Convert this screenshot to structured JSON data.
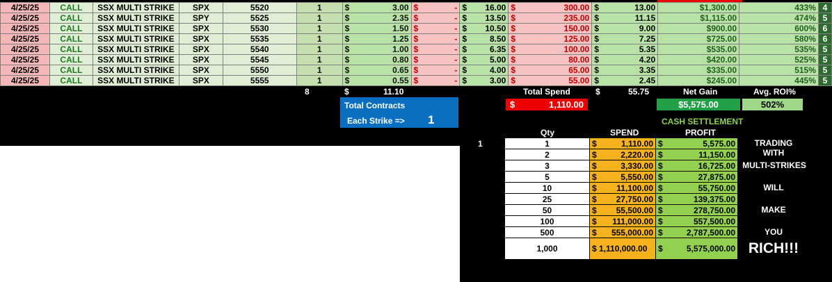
{
  "trades": [
    {
      "date": "4/25/25",
      "type": "CALL",
      "strategy": "SSX MULTI STRIKE",
      "symbol": "SPX",
      "strike": "5520",
      "qty": "1",
      "buy_cur": "$",
      "buy": "3.00",
      "sell_cur": "$",
      "sell": "-",
      "cur_cur": "$",
      "current": "16.00",
      "loss_cur": "$",
      "loss": "300.00",
      "val_cur": "$",
      "value": "13.00",
      "profit": "$1,300.00",
      "roi": "433%",
      "num": "4"
    },
    {
      "date": "4/25/25",
      "type": "CALL",
      "strategy": "SSX MULTI STRIKE",
      "symbol": "SPY",
      "strike": "5525",
      "qty": "1",
      "buy_cur": "$",
      "buy": "2.35",
      "sell_cur": "$",
      "sell": "-",
      "cur_cur": "$",
      "current": "13.50",
      "loss_cur": "$",
      "loss": "235.00",
      "val_cur": "$",
      "value": "11.15",
      "profit": "$1,115.00",
      "roi": "474%",
      "num": "5"
    },
    {
      "date": "4/25/25",
      "type": "CALL",
      "strategy": "SSX MULTI STRIKE",
      "symbol": "SPX",
      "strike": "5530",
      "qty": "1",
      "buy_cur": "$",
      "buy": "1.50",
      "sell_cur": "$",
      "sell": "-",
      "cur_cur": "$",
      "current": "10.50",
      "loss_cur": "$",
      "loss": "150.00",
      "val_cur": "$",
      "value": "9.00",
      "profit": "$900.00",
      "roi": "600%",
      "num": "6"
    },
    {
      "date": "4/25/25",
      "type": "CALL",
      "strategy": "SSX MULTI STRIKE",
      "symbol": "SPX",
      "strike": "5535",
      "qty": "1",
      "buy_cur": "$",
      "buy": "1.25",
      "sell_cur": "$",
      "sell": "-",
      "cur_cur": "$",
      "current": "8.50",
      "loss_cur": "$",
      "loss": "125.00",
      "val_cur": "$",
      "value": "7.25",
      "profit": "$725.00",
      "roi": "580%",
      "num": "6"
    },
    {
      "date": "4/25/25",
      "type": "CALL",
      "strategy": "SSX MULTI STRIKE",
      "symbol": "SPX",
      "strike": "5540",
      "qty": "1",
      "buy_cur": "$",
      "buy": "1.00",
      "sell_cur": "$",
      "sell": "-",
      "cur_cur": "$",
      "current": "6.35",
      "loss_cur": "$",
      "loss": "100.00",
      "val_cur": "$",
      "value": "5.35",
      "profit": "$535.00",
      "roi": "535%",
      "num": "5"
    },
    {
      "date": "4/25/25",
      "type": "CALL",
      "strategy": "SSX MULTI STRIKE",
      "symbol": "SPX",
      "strike": "5545",
      "qty": "1",
      "buy_cur": "$",
      "buy": "0.80",
      "sell_cur": "$",
      "sell": "-",
      "cur_cur": "$",
      "current": "5.00",
      "loss_cur": "$",
      "loss": "80.00",
      "val_cur": "$",
      "value": "4.20",
      "profit": "$420.00",
      "roi": "525%",
      "num": "5"
    },
    {
      "date": "4/25/25",
      "type": "CALL",
      "strategy": "SSX MULTI STRIKE",
      "symbol": "SPX",
      "strike": "5550",
      "qty": "1",
      "buy_cur": "$",
      "buy": "0.65",
      "sell_cur": "$",
      "sell": "-",
      "cur_cur": "$",
      "current": "4.00",
      "loss_cur": "$",
      "loss": "65.00",
      "val_cur": "$",
      "value": "3.35",
      "profit": "$335.00",
      "roi": "515%",
      "num": "5"
    },
    {
      "date": "4/25/25",
      "type": "CALL",
      "strategy": "SSX MULTI STRIKE",
      "symbol": "SPX",
      "strike": "5555",
      "qty": "1",
      "buy_cur": "$",
      "buy": "0.55",
      "sell_cur": "$",
      "sell": "-",
      "cur_cur": "$",
      "current": "3.00",
      "loss_cur": "$",
      "loss": "55.00",
      "val_cur": "$",
      "value": "2.45",
      "profit": "$245.00",
      "roi": "445%",
      "num": "5"
    }
  ],
  "totals": {
    "qty_total": "8",
    "buy_cur": "$",
    "buy_total": "11.10",
    "total_spend_label": "Total Spend",
    "val_cur": "$",
    "value_total": "55.75",
    "net_gain_label": "Net Gain",
    "avg_roi_label": "Avg. ROI%",
    "spend_cur": "$",
    "spend_value": "1,110.00",
    "net_gain_value": "$5,575.00",
    "avg_roi_value": "502%"
  },
  "contracts": {
    "title": "Total Contracts",
    "each_label": "Each Strike =>",
    "each_value": "1"
  },
  "settlement": {
    "title": "CASH SETTLEMENT",
    "qty_header": "Qty",
    "spend_header": "SPEND",
    "profit_header": "PROFIT",
    "left_marker": "1",
    "rows": [
      {
        "qty": "1",
        "spend": "1,110.00",
        "profit": "5,575.00"
      },
      {
        "qty": "2",
        "spend": "2,220.00",
        "profit": "11,150.00"
      },
      {
        "qty": "3",
        "spend": "3,330.00",
        "profit": "16,725.00"
      },
      {
        "qty": "5",
        "spend": "5,550.00",
        "profit": "27,875.00"
      },
      {
        "qty": "10",
        "spend": "11,100.00",
        "profit": "55,750.00"
      },
      {
        "qty": "25",
        "spend": "27,750.00",
        "profit": "139,375.00"
      },
      {
        "qty": "50",
        "spend": "55,500.00",
        "profit": "278,750.00"
      },
      {
        "qty": "100",
        "spend": "111,000.00",
        "profit": "557,500.00"
      },
      {
        "qty": "500",
        "spend": "555,000.00",
        "profit": "2,787,500.00"
      }
    ],
    "last_row": {
      "qty": "1,000",
      "spend": "$ 1,110,000.00",
      "profit": "5,575,000.00"
    },
    "cur": "$",
    "slogan": [
      "TRADING WITH",
      "MULTI-STRIKES",
      "WILL",
      "MAKE",
      "YOU",
      "RICH!!!"
    ]
  },
  "colors": {
    "header_red": "#ee0000",
    "blue_box": "#0b6fc1",
    "net_green": "#21a047",
    "spend_orange": "#f6b21d",
    "profit_green": "#92d050"
  }
}
